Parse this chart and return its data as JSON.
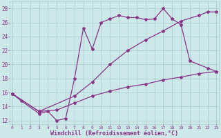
{
  "bg_color": "#cce8e8",
  "grid_color": "#aacece",
  "line_color": "#883388",
  "line1_x": [
    0,
    1,
    3,
    4,
    5,
    6,
    7,
    8,
    9,
    10,
    11,
    12,
    13,
    14,
    15,
    16,
    17,
    18,
    19,
    20,
    22,
    23
  ],
  "line1_y": [
    15.8,
    14.8,
    13.0,
    13.3,
    12.0,
    12.3,
    18.0,
    25.2,
    22.2,
    26.0,
    26.5,
    27.0,
    26.7,
    26.7,
    26.4,
    26.5,
    28.0,
    26.5,
    25.7,
    20.5,
    19.5,
    19.0
  ],
  "line2_x": [
    0,
    3,
    7,
    9,
    11,
    13,
    15,
    17,
    19,
    21,
    22,
    23
  ],
  "line2_y": [
    15.8,
    13.3,
    15.5,
    17.5,
    20.0,
    22.0,
    23.5,
    24.8,
    26.2,
    27.0,
    27.5,
    27.5
  ],
  "line3_x": [
    0,
    3,
    5,
    7,
    9,
    11,
    13,
    15,
    17,
    19,
    21,
    23
  ],
  "line3_y": [
    15.8,
    13.3,
    13.5,
    14.5,
    15.5,
    16.2,
    16.8,
    17.2,
    17.8,
    18.2,
    18.7,
    19.0
  ],
  "xlim": [
    0,
    23
  ],
  "ylim": [
    11.5,
    29.0
  ],
  "yticks": [
    12,
    14,
    16,
    18,
    20,
    22,
    24,
    26,
    28
  ],
  "xticks": [
    0,
    1,
    2,
    3,
    4,
    5,
    6,
    7,
    8,
    9,
    10,
    11,
    12,
    13,
    14,
    15,
    16,
    17,
    18,
    19,
    20,
    21,
    22,
    23
  ],
  "xlabel": "Windchill (Refroidissement éolien,°C)"
}
